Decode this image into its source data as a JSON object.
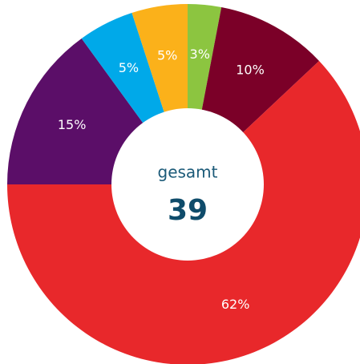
{
  "chart_data": {
    "type": "donut",
    "values": [
      3,
      10,
      62,
      15,
      5,
      5
    ],
    "value_labels": [
      "3%",
      "10%",
      "62%",
      "15%",
      "5%",
      "5%"
    ],
    "colors": [
      "#8cc540",
      "#7b0028",
      "#e8282b",
      "#5b0e68",
      "#00a9e9",
      "#fbb11a"
    ],
    "center_label": "gesamt",
    "center_value": 39
  }
}
